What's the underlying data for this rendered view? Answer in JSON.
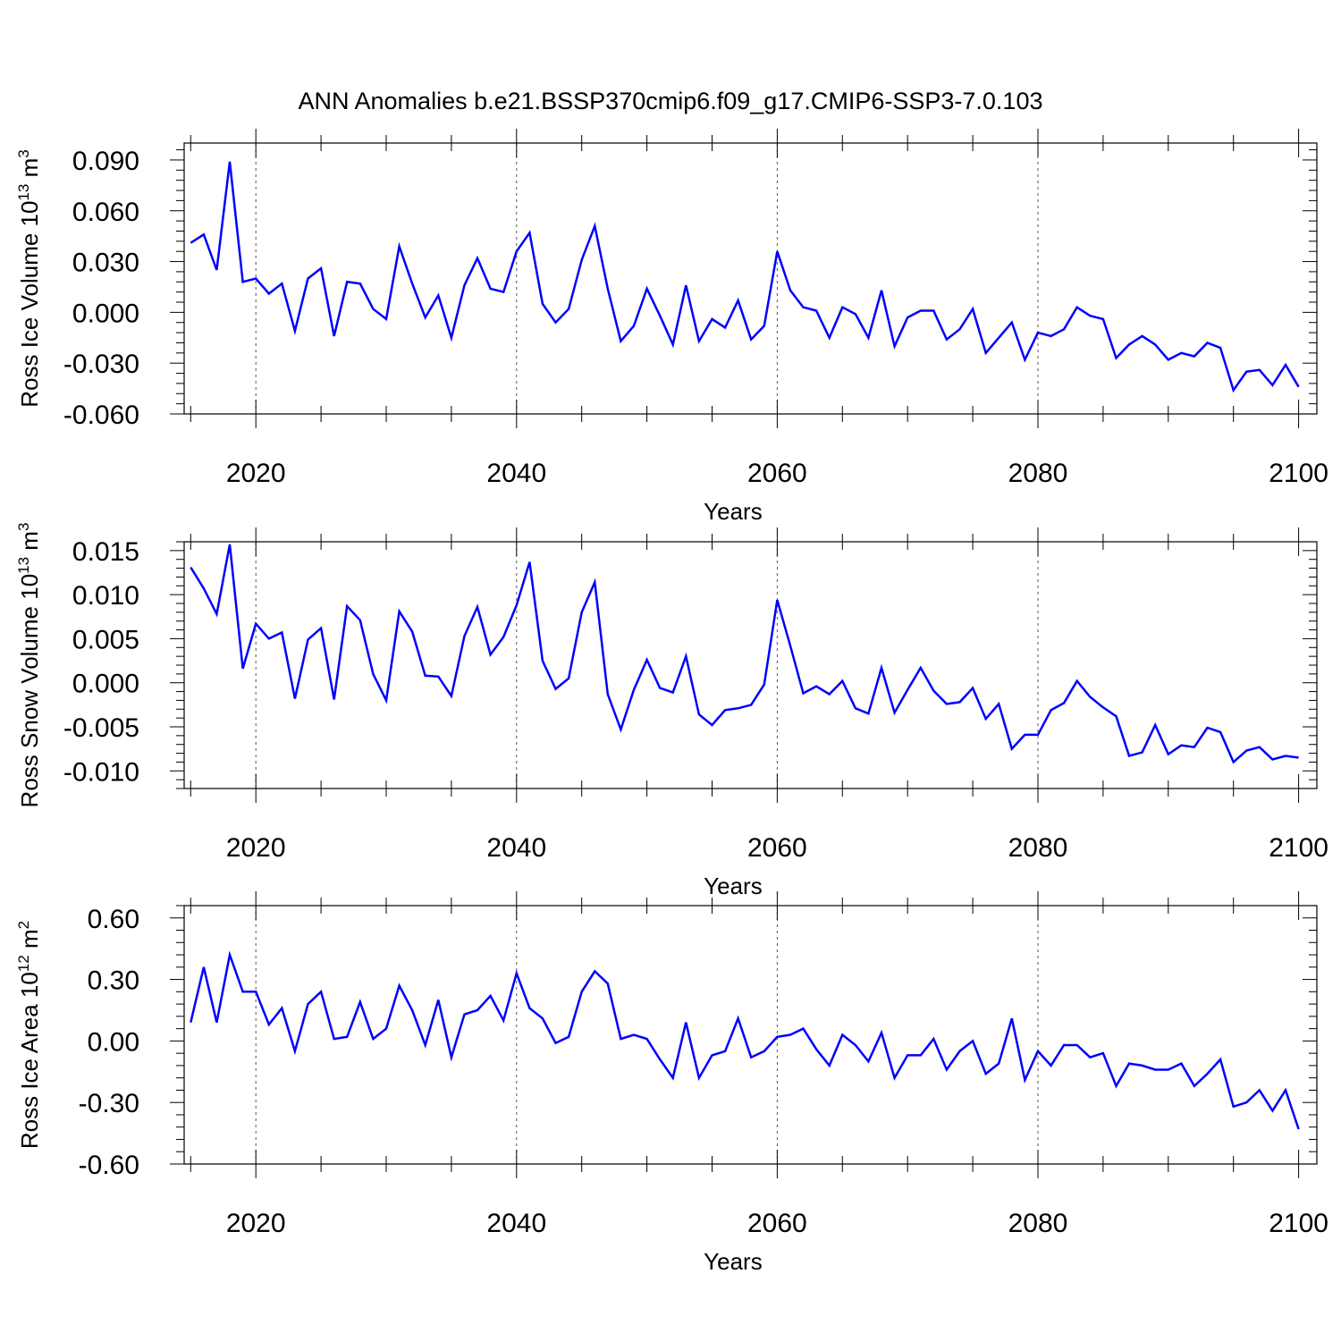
{
  "title": "ANN Anomalies b.e21.BSSP370cmip6.f09_g17.CMIP6-SSP3-7.0.103",
  "colors": {
    "series": "#0000ff",
    "axes": "#000000",
    "grid": "#555555"
  },
  "chart_data": [
    {
      "type": "line",
      "ylabel": "Ross Ice Volume",
      "ylabel_unit": "10",
      "ylabel_exp": "13",
      "ylabel_tail": " m",
      "ylabel_tail_exp": "3",
      "xlabel": "Years",
      "xlim": [
        2015,
        2100
      ],
      "ylim": [
        -0.06,
        0.09
      ],
      "xticks": [
        2020,
        2040,
        2060,
        2080,
        2100
      ],
      "xtick_labels": [
        "2020",
        "2040",
        "2060",
        "2080",
        "2100"
      ],
      "yticks": [
        -0.06,
        -0.03,
        0.0,
        0.03,
        0.06,
        0.09
      ],
      "ytick_labels": [
        "-0.060",
        "-0.030",
        "0.000",
        "0.030",
        "0.060",
        "0.090"
      ],
      "grid": "vertical dashed at major x ticks",
      "x_start": 2015,
      "x_step": 1,
      "values": [
        0.041,
        0.046,
        0.025,
        0.089,
        0.018,
        0.02,
        0.011,
        0.017,
        -0.011,
        0.02,
        0.026,
        -0.014,
        0.018,
        0.017,
        0.002,
        -0.004,
        0.039,
        0.017,
        -0.003,
        0.01,
        -0.015,
        0.016,
        0.032,
        0.014,
        0.012,
        0.036,
        0.047,
        0.005,
        -0.006,
        0.002,
        0.031,
        0.051,
        0.014,
        -0.017,
        -0.008,
        0.014,
        -0.002,
        -0.019,
        0.016,
        -0.017,
        -0.004,
        -0.009,
        0.007,
        -0.016,
        -0.008,
        0.036,
        0.013,
        0.003,
        0.001,
        -0.015,
        0.003,
        -0.001,
        -0.015,
        0.013,
        -0.02,
        -0.003,
        0.001,
        0.001,
        -0.016,
        -0.01,
        0.002,
        -0.024,
        -0.015,
        -0.006,
        -0.028,
        -0.012,
        -0.014,
        -0.01,
        0.003,
        -0.002,
        -0.004,
        -0.027,
        -0.019,
        -0.014,
        -0.019,
        -0.028,
        -0.024,
        -0.026,
        -0.018,
        -0.021,
        -0.046,
        -0.035,
        -0.034,
        -0.043,
        -0.031,
        -0.044
      ]
    },
    {
      "type": "line",
      "ylabel": "Ross Snow Volume",
      "ylabel_unit": "10",
      "ylabel_exp": "13",
      "ylabel_tail": " m",
      "ylabel_tail_exp": "3",
      "xlabel": "Years",
      "xlim": [
        2015,
        2100
      ],
      "ylim": [
        -0.012,
        0.016
      ],
      "xticks": [
        2020,
        2040,
        2060,
        2080,
        2100
      ],
      "xtick_labels": [
        "2020",
        "2040",
        "2060",
        "2080",
        "2100"
      ],
      "yticks": [
        -0.01,
        -0.005,
        0.0,
        0.005,
        0.01,
        0.015
      ],
      "ytick_labels": [
        "-0.010",
        "-0.005",
        "0.000",
        "0.005",
        "0.010",
        "0.015"
      ],
      "grid": "vertical dashed at major x ticks",
      "x_start": 2015,
      "x_step": 1,
      "values": [
        0.0131,
        0.0107,
        0.0078,
        0.0157,
        0.0016,
        0.0067,
        0.005,
        0.0057,
        -0.0018,
        0.0049,
        0.0062,
        -0.0019,
        0.0087,
        0.0071,
        0.001,
        -0.002,
        0.0081,
        0.0058,
        0.0008,
        0.0007,
        -0.0015,
        0.0053,
        0.0086,
        0.0032,
        0.0052,
        0.0088,
        0.0137,
        0.0025,
        -0.0007,
        0.0005,
        0.008,
        0.0114,
        -0.0013,
        -0.0053,
        -0.0008,
        0.0026,
        -0.0006,
        -0.0011,
        0.003,
        -0.0036,
        -0.0048,
        -0.0031,
        -0.0029,
        -0.0025,
        -0.0002,
        0.0094,
        0.0042,
        -0.0012,
        -0.0004,
        -0.0013,
        0.0002,
        -0.0029,
        -0.0035,
        0.0017,
        -0.0034,
        -0.0008,
        0.0017,
        -0.0009,
        -0.0024,
        -0.0022,
        -0.0006,
        -0.0041,
        -0.0024,
        -0.0075,
        -0.0059,
        -0.0059,
        -0.0031,
        -0.0023,
        0.0002,
        -0.0016,
        -0.0028,
        -0.0038,
        -0.0083,
        -0.0079,
        -0.0048,
        -0.0081,
        -0.0071,
        -0.0073,
        -0.0051,
        -0.0056,
        -0.009,
        -0.0077,
        -0.0073,
        -0.0087,
        -0.0083,
        -0.0085
      ]
    },
    {
      "type": "line",
      "ylabel": "Ross Ice Area",
      "ylabel_unit": "10",
      "ylabel_exp": "12",
      "ylabel_tail": " m",
      "ylabel_tail_exp": "2",
      "xlabel": "Years",
      "xlim": [
        2015,
        2100
      ],
      "ylim": [
        -0.6,
        0.6
      ],
      "xticks": [
        2020,
        2040,
        2060,
        2080,
        2100
      ],
      "xtick_labels": [
        "2020",
        "2040",
        "2060",
        "2080",
        "2100"
      ],
      "yticks": [
        -0.6,
        -0.3,
        0.0,
        0.3,
        0.6
      ],
      "ytick_labels": [
        "-0.60",
        "-0.30",
        "0.00",
        "0.30",
        "0.60"
      ],
      "grid": "vertical dashed at major x ticks",
      "x_start": 2015,
      "x_step": 1,
      "values": [
        0.09,
        0.36,
        0.09,
        0.42,
        0.24,
        0.24,
        0.08,
        0.16,
        -0.05,
        0.18,
        0.24,
        0.01,
        0.02,
        0.19,
        0.01,
        0.06,
        0.27,
        0.15,
        -0.02,
        0.2,
        -0.08,
        0.13,
        0.15,
        0.22,
        0.1,
        0.33,
        0.16,
        0.11,
        -0.01,
        0.02,
        0.24,
        0.34,
        0.28,
        0.01,
        0.03,
        0.01,
        -0.09,
        -0.18,
        0.09,
        -0.18,
        -0.07,
        -0.05,
        0.11,
        -0.08,
        -0.05,
        0.02,
        0.03,
        0.06,
        -0.04,
        -0.12,
        0.03,
        -0.02,
        -0.1,
        0.04,
        -0.18,
        -0.07,
        -0.07,
        0.01,
        -0.14,
        -0.05,
        0.0,
        -0.16,
        -0.11,
        0.11,
        -0.19,
        -0.05,
        -0.12,
        -0.02,
        -0.02,
        -0.08,
        -0.06,
        -0.22,
        -0.11,
        -0.12,
        -0.14,
        -0.14,
        -0.11,
        -0.22,
        -0.16,
        -0.09,
        -0.32,
        -0.3,
        -0.24,
        -0.34,
        -0.24,
        -0.43
      ]
    }
  ]
}
